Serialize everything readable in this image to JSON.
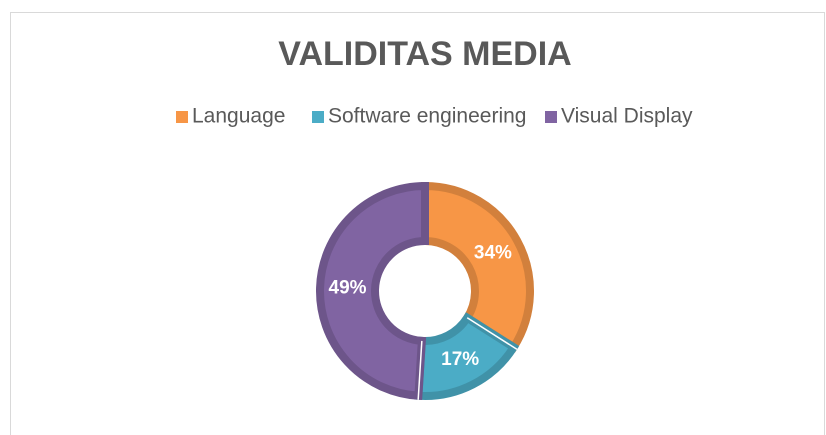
{
  "chart_data": {
    "type": "donut",
    "title": "VALIDITAS MEDIA",
    "categories": [
      "Language",
      "Software engineering",
      "Visual Display"
    ],
    "values": [
      34,
      17,
      49
    ],
    "value_labels": [
      "34%",
      "17%",
      "49%"
    ],
    "colors": [
      "#F79646",
      "#4BACC6",
      "#8064A2"
    ],
    "legend": "top"
  }
}
